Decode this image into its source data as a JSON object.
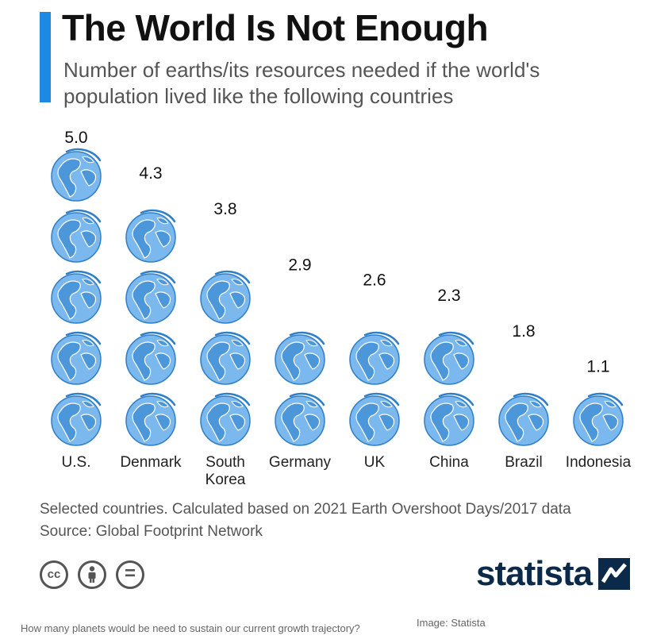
{
  "header": {
    "title": "The World Is Not Enough",
    "subtitle": "Number of earths/its resources needed if the world's population lived like the following countries",
    "accent_color": "#1e88e5"
  },
  "chart_data": {
    "type": "pictograph",
    "unit_icon": "globe-icon",
    "icon_colors": {
      "fill": "#7ab8ee",
      "stroke": "#2f7fc8",
      "land": "#4c97d9"
    },
    "categories": [
      "U.S.",
      "Denmark",
      "South Korea",
      "Germany",
      "UK",
      "China",
      "Brazil",
      "Indonesia"
    ],
    "category_labels": [
      [
        "U.S."
      ],
      [
        "Denmark"
      ],
      [
        "South",
        "Korea"
      ],
      [
        "Germany"
      ],
      [
        "UK"
      ],
      [
        "China"
      ],
      [
        "Brazil"
      ],
      [
        "Indonesia"
      ]
    ],
    "values": [
      5.0,
      4.3,
      3.8,
      2.9,
      2.6,
      2.3,
      1.8,
      1.1
    ],
    "value_labels": [
      "5.0",
      "4.3",
      "3.8",
      "2.9",
      "2.6",
      "2.3",
      "1.8",
      "1.1"
    ],
    "ylim": [
      0,
      5
    ]
  },
  "footer": {
    "note": "Selected countries. Calculated based on 2021 Earth Overshoot Days/2017 data",
    "source": "Source: Global Footprint Network",
    "license_icons": [
      "cc-icon",
      "attribution-icon",
      "no-derivatives-icon"
    ],
    "cc_label": "cc",
    "equals_label": "=",
    "brand": "statista"
  },
  "caption": {
    "text": "How many planets would be need to sustain our current growth trajectory?",
    "credit": "Image: Statista"
  }
}
